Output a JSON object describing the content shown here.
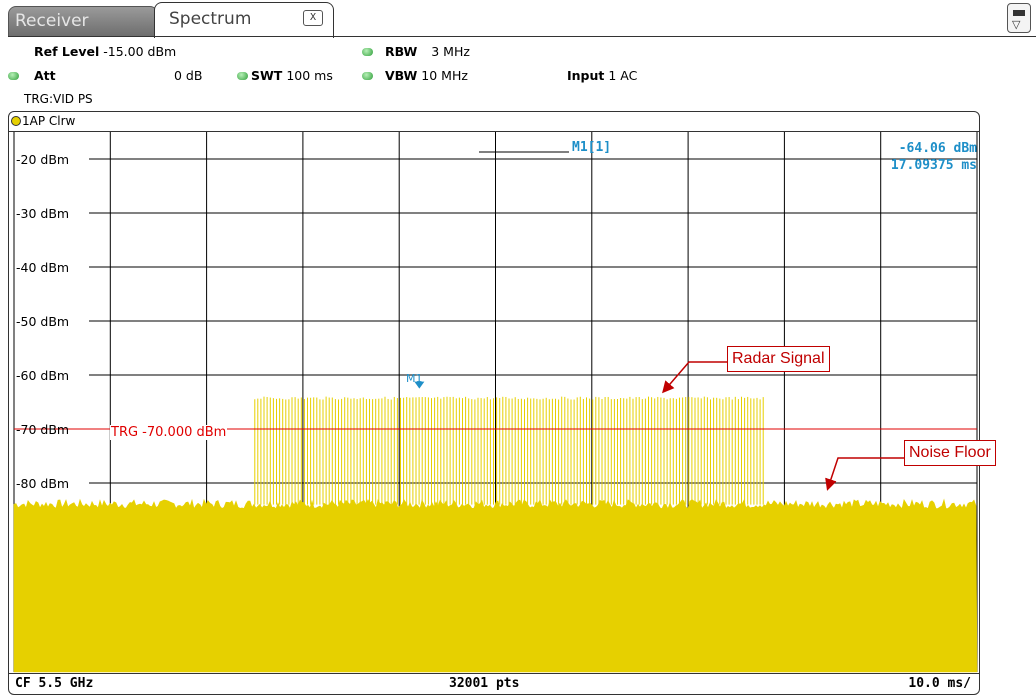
{
  "tabs": [
    {
      "label": "Receiver",
      "active": false
    },
    {
      "label": "Spectrum",
      "active": true,
      "close_label": "X"
    }
  ],
  "settings": {
    "ref_level_label": "Ref Level",
    "ref_level_value": "-15.00 dBm",
    "att_label": "Att",
    "att_value": "0 dB",
    "swt_label": "SWT",
    "swt_value": "100 ms",
    "rbw_label": "RBW",
    "rbw_value": "3 MHz",
    "vbw_label": "VBW",
    "vbw_value": "10 MHz",
    "input_label": "Input",
    "input_value": "1 AC",
    "trigger_text": "TRG:VID PS"
  },
  "diagram": {
    "trace_label": "1AP Clrw",
    "marker_label": "M1[1]",
    "marker_value": "-64.06 dBm",
    "marker_time": "17.09375 ms",
    "marker_flag": "M1",
    "trigger_line_label": "TRG  -70.000 dBm",
    "footer_left": "CF 5.5 GHz",
    "footer_center": "32001 pts",
    "footer_right": "10.0 ms/"
  },
  "annotations": {
    "radar": "Radar Signal",
    "noise": "Noise Floor"
  },
  "colors": {
    "trace": "#e6d000",
    "marker": "#1e8fc8",
    "trigger": "#e00000",
    "callout": "#c00000",
    "led": "#2f9e3a"
  },
  "chart_data": {
    "type": "line",
    "ylabels": [
      "-20 dBm",
      "-30 dBm",
      "-40 dBm",
      "-50 dBm",
      "-60 dBm",
      "-70 dBm",
      "-80 dBm"
    ],
    "ylevels": [
      -20,
      -30,
      -40,
      -50,
      -60,
      -70,
      -80
    ],
    "ylim": [
      -15,
      -115
    ],
    "xlim": [
      0,
      100
    ],
    "grid": true,
    "noise_floor_dbm": -84,
    "radar_pulse_dbm": -64,
    "pulse_start_ms": 25,
    "pulse_end_ms": 78,
    "trigger_level_dbm": -70,
    "marker_time_ms": 17.09375
  }
}
